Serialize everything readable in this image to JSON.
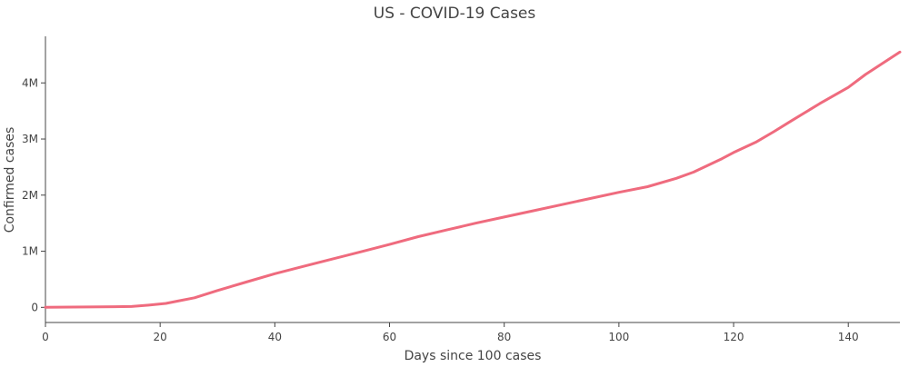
{
  "chart_data": {
    "type": "line",
    "title": "US - COVID-19 Cases",
    "xlabel": "Days since 100 cases",
    "ylabel": "Confirmed cases",
    "xlim": [
      0,
      149
    ],
    "ylim": [
      -270000,
      4830000
    ],
    "x_ticks": [
      0,
      20,
      40,
      60,
      80,
      100,
      120,
      140
    ],
    "x_tick_labels": [
      "0",
      "20",
      "40",
      "60",
      "80",
      "100",
      "120",
      "140"
    ],
    "y_ticks": [
      0,
      1000000,
      2000000,
      3000000,
      4000000
    ],
    "y_tick_labels": [
      "0",
      "1M",
      "2M",
      "3M",
      "4M"
    ],
    "grid": false,
    "legend": "none",
    "line_color": "#ef6b7e",
    "series": [
      {
        "x": [
          0,
          5,
          10,
          15,
          18,
          21,
          23,
          26,
          30,
          35,
          40,
          45,
          50,
          55,
          60,
          65,
          70,
          75,
          80,
          85,
          90,
          95,
          100,
          105,
          110,
          113,
          118,
          120,
          124,
          127,
          130,
          135,
          140,
          143,
          149
        ],
        "values": [
          0,
          5000,
          8000,
          15000,
          40000,
          70000,
          110000,
          170000,
          300000,
          450000,
          600000,
          730000,
          860000,
          990000,
          1120000,
          1260000,
          1380000,
          1500000,
          1610000,
          1720000,
          1830000,
          1940000,
          2050000,
          2150000,
          2300000,
          2410000,
          2650000,
          2760000,
          2950000,
          3130000,
          3320000,
          3630000,
          3920000,
          4150000,
          4550000
        ]
      }
    ]
  }
}
